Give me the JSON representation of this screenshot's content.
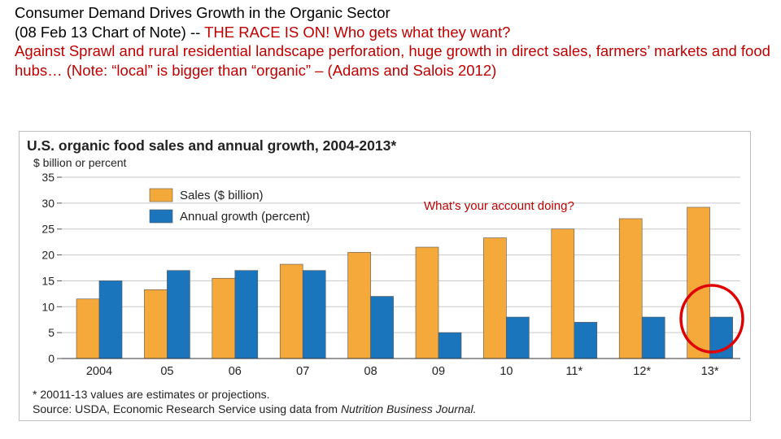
{
  "slide": {
    "line1": "Consumer Demand Drives Growth in the Organic Sector",
    "line2_black": "(08 Feb 13 Chart of Note) -- ",
    "line2_red": "THE RACE IS ON!  Who gets what they want?",
    "line3_red": "Against Sprawl and rural residential landscape perforation,  huge growth in direct sales, farmers’ markets and food hubs…  (Note:  “local” is bigger than “organic” – (Adams and Salois 2012)",
    "annotation": "What’s your account doing?",
    "circle_color": "#e00000"
  },
  "chart_data": {
    "type": "bar",
    "title": "U.S. organic food sales and annual growth, 2004-2013*",
    "ylabel": "$ billion or percent",
    "ylim": [
      0,
      35
    ],
    "yticks": [
      "0",
      "5",
      "10",
      "15",
      "20",
      "25",
      "30",
      "35"
    ],
    "categories": [
      "2004",
      "05",
      "06",
      "07",
      "08",
      "09",
      "10",
      "11*",
      "12*",
      "13*"
    ],
    "series": [
      {
        "name": "Sales ($ billion)",
        "color": "#f6a93b",
        "values": [
          11.5,
          13.3,
          15.5,
          18.2,
          20.5,
          21.5,
          23.3,
          25,
          27,
          29.2
        ]
      },
      {
        "name": "Annual growth (percent)",
        "color": "#1a75bc",
        "values": [
          15,
          17,
          17,
          17,
          12,
          5,
          8,
          7,
          8,
          8
        ]
      }
    ],
    "grid": true,
    "legend_position": "top-left",
    "footnote": "* 20011-13 values are estimates or projections.",
    "source_prefix": "Source: USDA, Economic Research Service using data from ",
    "source_italic": "Nutrition Business Journal."
  }
}
